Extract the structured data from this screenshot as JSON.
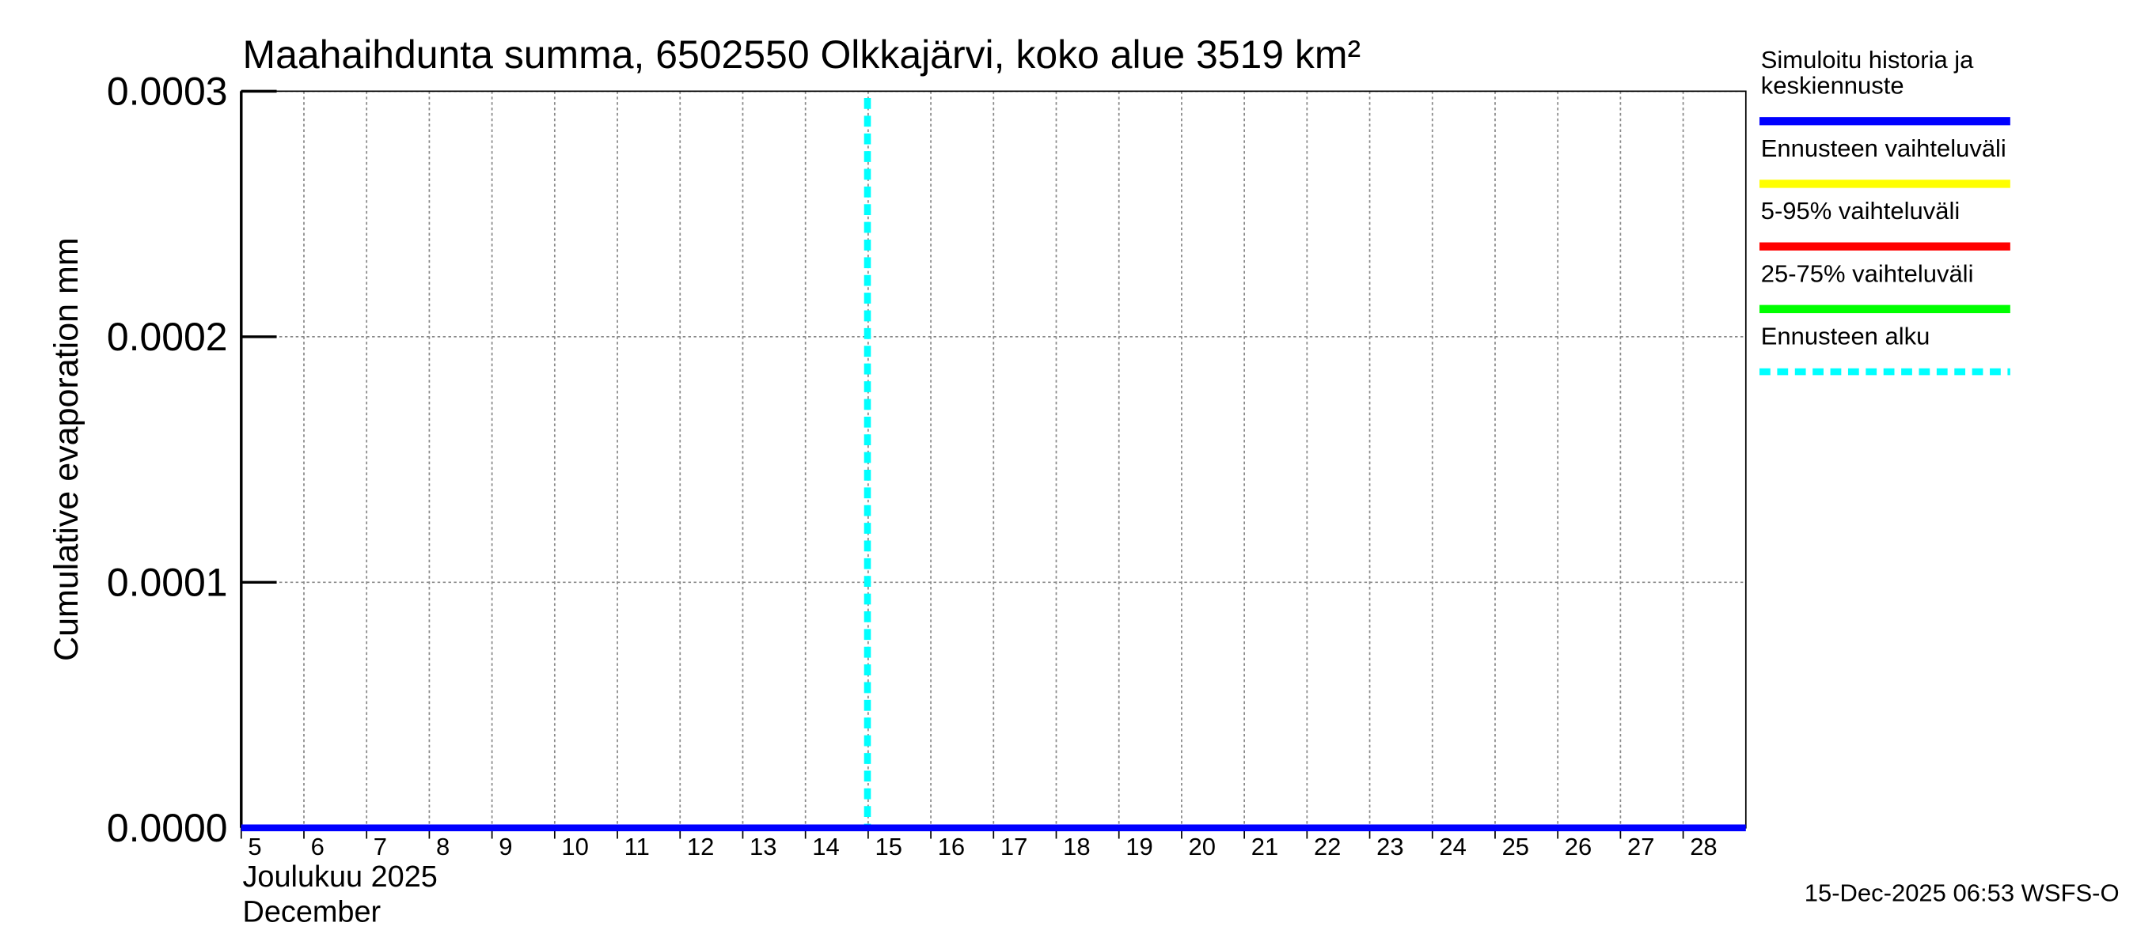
{
  "chart_data": {
    "type": "line",
    "title": "Maahaihdunta summa, 6502550 Olkkajärvi, koko alue 3519 km²",
    "y_label": "Cumulative evaporation   mm",
    "x_label_lines": [
      "Joulukuu  2025",
      "December"
    ],
    "footer": "15-Dec-2025 06:53 WSFS-O",
    "xlim": [
      5,
      29
    ],
    "xticks": [
      5,
      6,
      7,
      8,
      9,
      10,
      11,
      12,
      13,
      14,
      15,
      16,
      17,
      18,
      19,
      20,
      21,
      22,
      23,
      24,
      25,
      26,
      27,
      28
    ],
    "ylim": [
      0,
      0.0003
    ],
    "yticks": [
      {
        "value": 0,
        "label": "0.0000"
      },
      {
        "value": 0.0001,
        "label": "0.0001"
      },
      {
        "value": 0.0002,
        "label": "0.0002"
      },
      {
        "value": 0.0003,
        "label": "0.0003"
      }
    ],
    "grid": true,
    "series": [
      {
        "name": "Simuloitu historia ja\nkeskiennuste",
        "color": "#0000ff",
        "x": [
          5,
          29
        ],
        "values": [
          0,
          0
        ]
      },
      {
        "name": "Ennusteen vaihteluväli",
        "color": "#ffff00",
        "x": [],
        "values": []
      },
      {
        "name": "5-95% vaihteluväli",
        "color": "#ff0000",
        "x": [],
        "values": []
      },
      {
        "name": "25-75% vaihteluväli",
        "color": "#00ff00",
        "x": [],
        "values": []
      }
    ],
    "forecast_start": {
      "name": "Ennusteen alku",
      "color": "#00ffff",
      "x": 15
    }
  }
}
